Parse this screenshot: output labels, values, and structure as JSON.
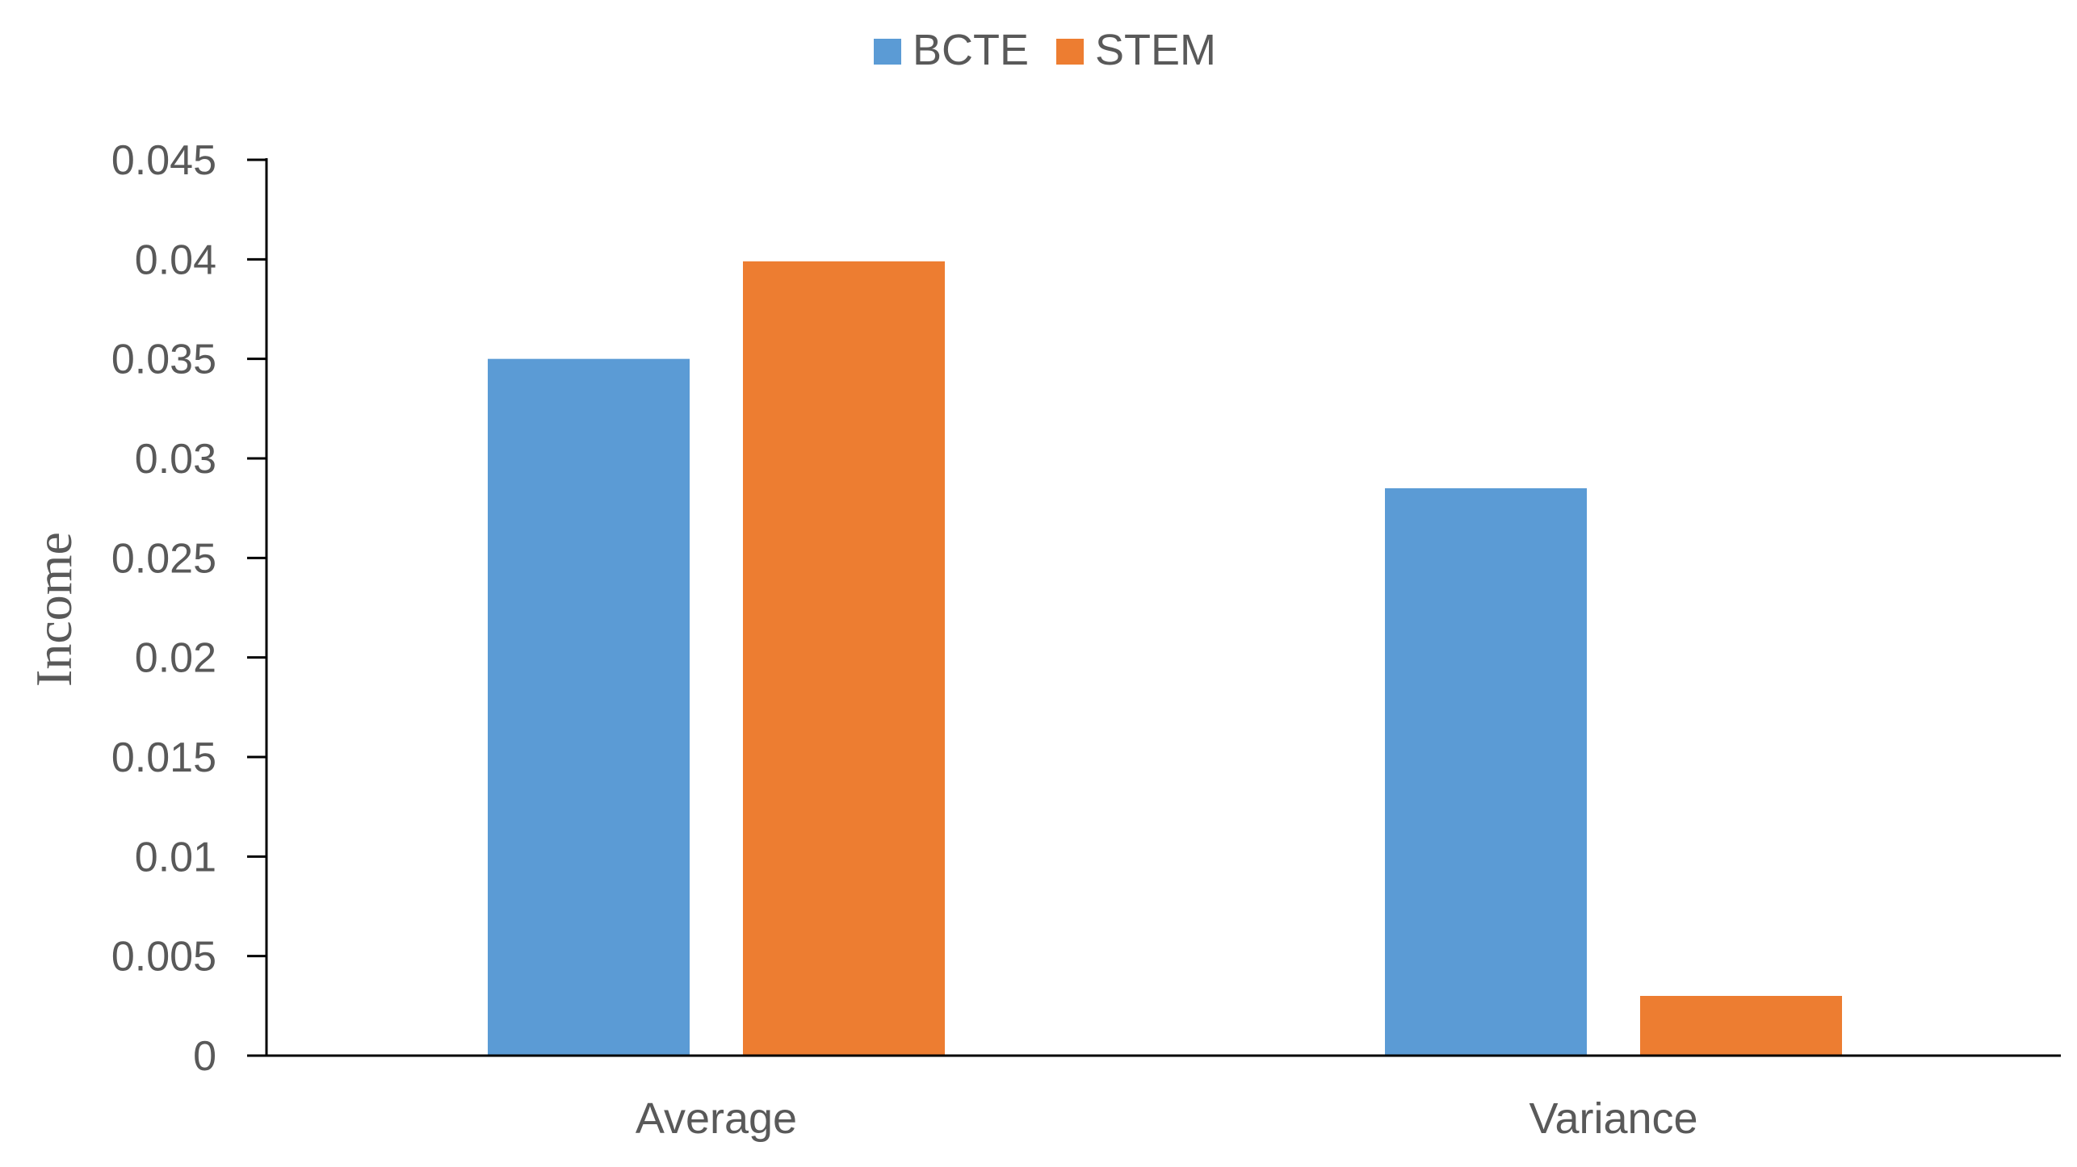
{
  "chart_data": {
    "type": "bar",
    "title": "",
    "xlabel": "",
    "ylabel": "Income",
    "categories": [
      "Average",
      "Variance"
    ],
    "series": [
      {
        "name": "BCTE",
        "color": "#5B9BD5",
        "values": [
          0.035,
          0.0285
        ]
      },
      {
        "name": "STEM",
        "color": "#ED7D31",
        "values": [
          0.0399,
          0.003
        ]
      }
    ],
    "ylim": [
      0,
      0.045
    ],
    "yticks": [
      0,
      0.005,
      0.01,
      0.015,
      0.02,
      0.025,
      0.03,
      0.035,
      0.04,
      0.045
    ],
    "ytick_labels": [
      "0",
      "0.005",
      "0.01",
      "0.015",
      "0.02",
      "0.025",
      "0.03",
      "0.035",
      "0.04",
      "0.045"
    ],
    "grid": false,
    "legend_position": "top-center"
  }
}
